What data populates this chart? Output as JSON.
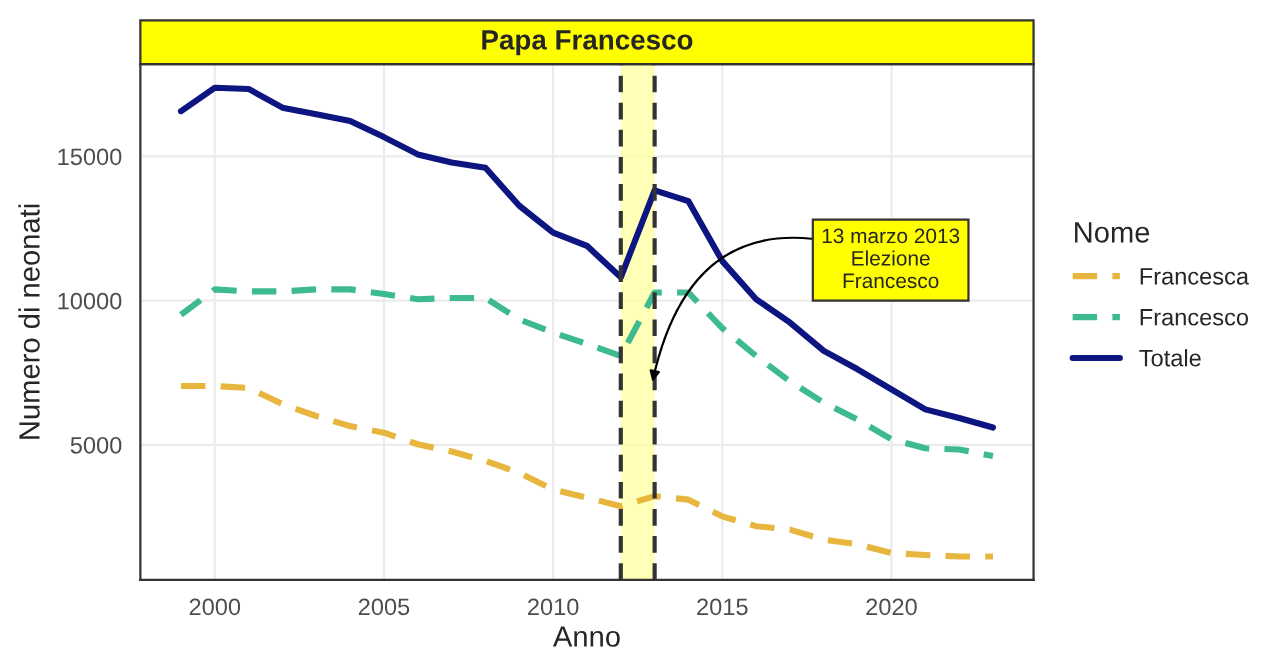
{
  "chart_data": {
    "type": "line",
    "title": "Papa Francesco",
    "xlabel": "Anno",
    "ylabel": "Numero di neonati",
    "legend_title": "Nome",
    "x": [
      1999,
      2000,
      2001,
      2002,
      2003,
      2004,
      2005,
      2006,
      2007,
      2008,
      2009,
      2010,
      2011,
      2012,
      2013,
      2014,
      2015,
      2016,
      2017,
      2018,
      2019,
      2020,
      2021,
      2022,
      2023
    ],
    "series": [
      {
        "name": "Francesca",
        "color": "#e8b53f",
        "line_style": "dashed",
        "values": [
          7040,
          7040,
          6970,
          6410,
          6000,
          5650,
          5420,
          5020,
          4770,
          4440,
          4030,
          3450,
          3170,
          2870,
          3220,
          3100,
          2520,
          2180,
          2060,
          1710,
          1550,
          1250,
          1180,
          1130,
          1130
        ]
      },
      {
        "name": "Francesco",
        "color": "#3dbb8f",
        "line_style": "dashed",
        "values": [
          9510,
          10390,
          10320,
          10320,
          10390,
          10390,
          10230,
          10050,
          10090,
          10090,
          9350,
          8890,
          8500,
          8080,
          10280,
          10280,
          9050,
          8080,
          7200,
          6460,
          5880,
          5190,
          4880,
          4840,
          4610
        ]
      },
      {
        "name": "Totale",
        "color": "#0d1580",
        "line_style": "solid",
        "values": [
          16570,
          17380,
          17340,
          16690,
          16460,
          16230,
          15670,
          15070,
          14790,
          14610,
          13290,
          12360,
          11900,
          10810,
          13820,
          13450,
          11370,
          10050,
          9240,
          8260,
          7620,
          6920,
          6230,
          5930,
          5600
        ]
      }
    ],
    "xlim": [
      1997.8,
      2024.2
    ],
    "ylim": [
      320,
      18200
    ],
    "xticks": [
      2000,
      2005,
      2010,
      2015,
      2020
    ],
    "yticks": [
      5000,
      10000,
      15000
    ],
    "bands": [
      {
        "axis": "x",
        "from": 2012,
        "to": 2013,
        "color": "#ffff99"
      }
    ],
    "ref_lines": [
      {
        "axis": "x",
        "value": 2012,
        "color": "#333333",
        "line_style": "dashed"
      },
      {
        "axis": "x",
        "value": 2013,
        "color": "#333333",
        "line_style": "dashed"
      }
    ],
    "annotations": [
      {
        "text": "13 marzo 2013\nElezione\nFrancesco",
        "x": 2012.9,
        "y": 7000
      }
    ],
    "grid": true,
    "legend": "right"
  }
}
